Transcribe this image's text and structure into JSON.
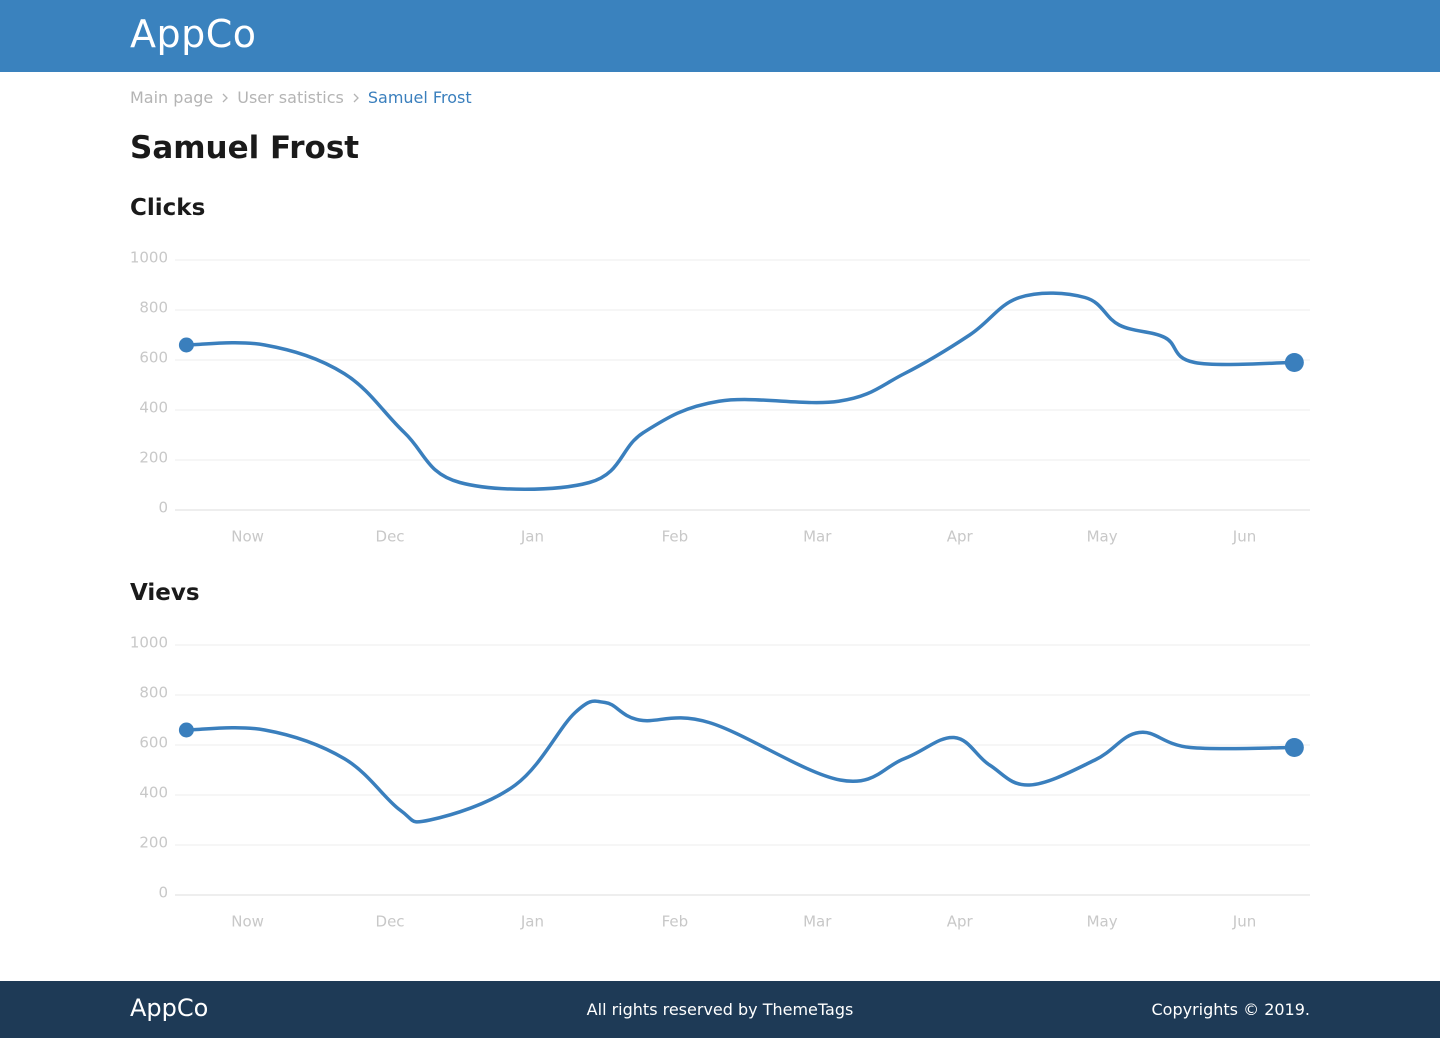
{
  "header": {
    "logo": "AppCo"
  },
  "breadcrumb": [
    "Main page",
    "User satistics",
    "Samuel Frost"
  ],
  "title": "Samuel Frost",
  "chart_data": [
    {
      "type": "line",
      "title": "Clicks",
      "color": "#3a7fbd",
      "grid": true,
      "x": [
        -0.43,
        0.12,
        0.68,
        1.1,
        1.49,
        2.4,
        2.78,
        3.31,
        4.15,
        4.61,
        5.07,
        5.42,
        5.88,
        6.12,
        6.44,
        6.65,
        7.35
      ],
      "values": [
        660,
        660,
        545,
        310,
        110,
        110,
        310,
        435,
        435,
        545,
        700,
        850,
        850,
        740,
        690,
        590,
        590
      ],
      "xlim": [
        -0.51,
        7.46
      ],
      "xticks": [
        {
          "value": 0,
          "label": "Now"
        },
        {
          "value": 1,
          "label": "Dec"
        },
        {
          "value": 2,
          "label": "Jan"
        },
        {
          "value": 3,
          "label": "Feb"
        },
        {
          "value": 4,
          "label": "Mar"
        },
        {
          "value": 5,
          "label": "Apr"
        },
        {
          "value": 6,
          "label": "May"
        },
        {
          "value": 7,
          "label": "Jun"
        }
      ],
      "ylim": [
        0,
        1000
      ],
      "yticks": [
        0,
        200,
        400,
        600,
        800,
        1000
      ]
    },
    {
      "type": "line",
      "title": "Vievs",
      "color": "#3a7fbd",
      "grid": true,
      "x": [
        -0.43,
        0.12,
        0.68,
        1.07,
        1.28,
        1.88,
        2.3,
        2.51,
        2.75,
        3.24,
        4.16,
        4.61,
        4.96,
        5.21,
        5.49,
        5.95,
        6.26,
        6.62,
        7.35
      ],
      "values": [
        660,
        660,
        545,
        340,
        300,
        440,
        730,
        770,
        700,
        690,
        460,
        545,
        630,
        520,
        440,
        540,
        650,
        590,
        590
      ],
      "xlim": [
        -0.51,
        7.46
      ],
      "xticks": [
        {
          "value": 0,
          "label": "Now"
        },
        {
          "value": 1,
          "label": "Dec"
        },
        {
          "value": 2,
          "label": "Jan"
        },
        {
          "value": 3,
          "label": "Feb"
        },
        {
          "value": 4,
          "label": "Mar"
        },
        {
          "value": 5,
          "label": "Apr"
        },
        {
          "value": 6,
          "label": "May"
        },
        {
          "value": 7,
          "label": "Jun"
        }
      ],
      "ylim": [
        0,
        1000
      ],
      "yticks": [
        0,
        200,
        400,
        600,
        800,
        1000
      ]
    }
  ],
  "footer": {
    "logo": "AppCo",
    "rights": "All rights reserved by ThemeTags",
    "copyright": "Copyrights © 2019."
  }
}
